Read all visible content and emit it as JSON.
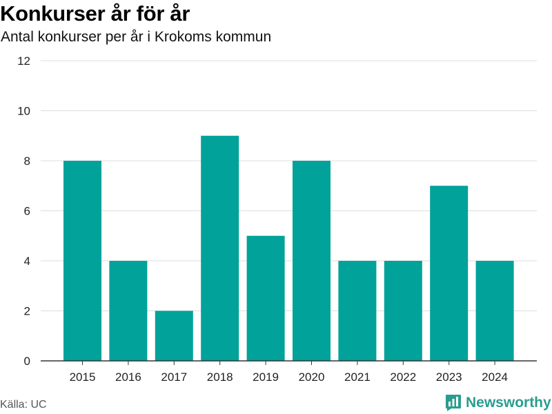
{
  "header": {
    "title": "Konkurser år för år",
    "subtitle": "Antal konkurser per år i Krokoms kommun"
  },
  "footer": {
    "source": "Källa: UC",
    "brand": "Newsworthy",
    "brand_icon": "newsworthy-logo-icon"
  },
  "colors": {
    "bar": "#00a29a",
    "brand": "#2a9d8f",
    "grid": "#dddddd",
    "axis": "#333333"
  },
  "chart_data": {
    "type": "bar",
    "categories": [
      "2015",
      "2016",
      "2017",
      "2018",
      "2019",
      "2020",
      "2021",
      "2022",
      "2023",
      "2024"
    ],
    "values": [
      8,
      4,
      2,
      9,
      5,
      8,
      4,
      4,
      7,
      4
    ],
    "ylim": [
      0,
      12
    ],
    "yticks": [
      0,
      2,
      4,
      6,
      8,
      10,
      12
    ],
    "grid": true,
    "legend": "none"
  }
}
